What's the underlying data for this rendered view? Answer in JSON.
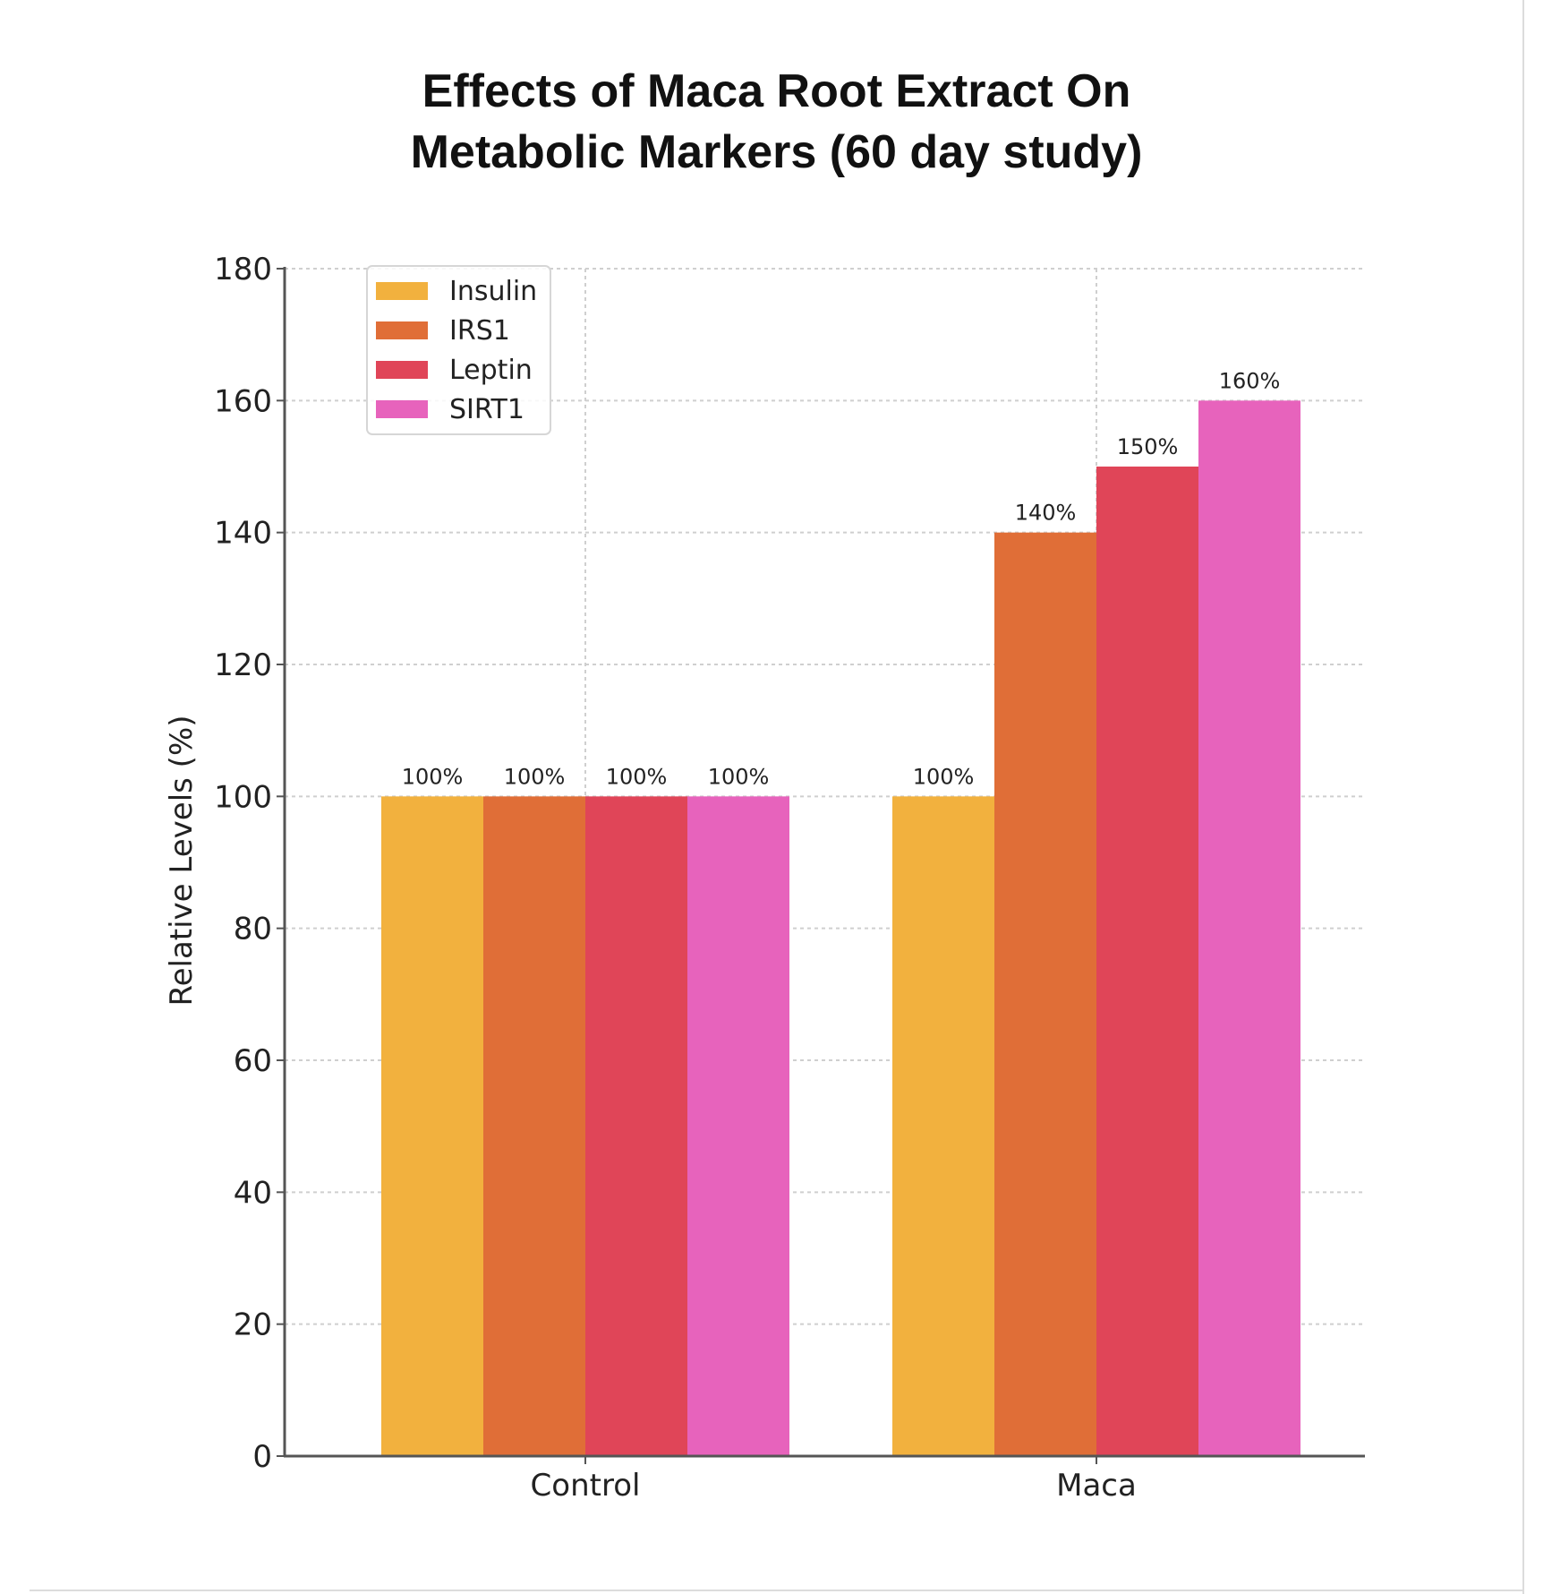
{
  "chart_data": {
    "type": "bar",
    "title": "Effects of Maca Root Extract On\nMetabolic Markers (60 day study)",
    "xlabel": "",
    "ylabel": "Relative Levels (%)",
    "categories": [
      "Control",
      "Maca"
    ],
    "ylim": [
      0,
      180
    ],
    "yticks": [
      0,
      20,
      40,
      60,
      80,
      100,
      120,
      140,
      160,
      180
    ],
    "grid": true,
    "legend_position": "top-left",
    "series": [
      {
        "name": "Insulin",
        "values": [
          100,
          100
        ],
        "labels": [
          "100%",
          "100%"
        ],
        "color": "#F2B13E"
      },
      {
        "name": "IRS1",
        "values": [
          100,
          140
        ],
        "labels": [
          "100%",
          "140%"
        ],
        "color": "#E06E37"
      },
      {
        "name": "Leptin",
        "values": [
          100,
          150
        ],
        "labels": [
          "100%",
          "150%"
        ],
        "color": "#E04558"
      },
      {
        "name": "SIRT1",
        "values": [
          100,
          160
        ],
        "labels": [
          "100%",
          "160%"
        ],
        "color": "#E763BC"
      }
    ]
  }
}
